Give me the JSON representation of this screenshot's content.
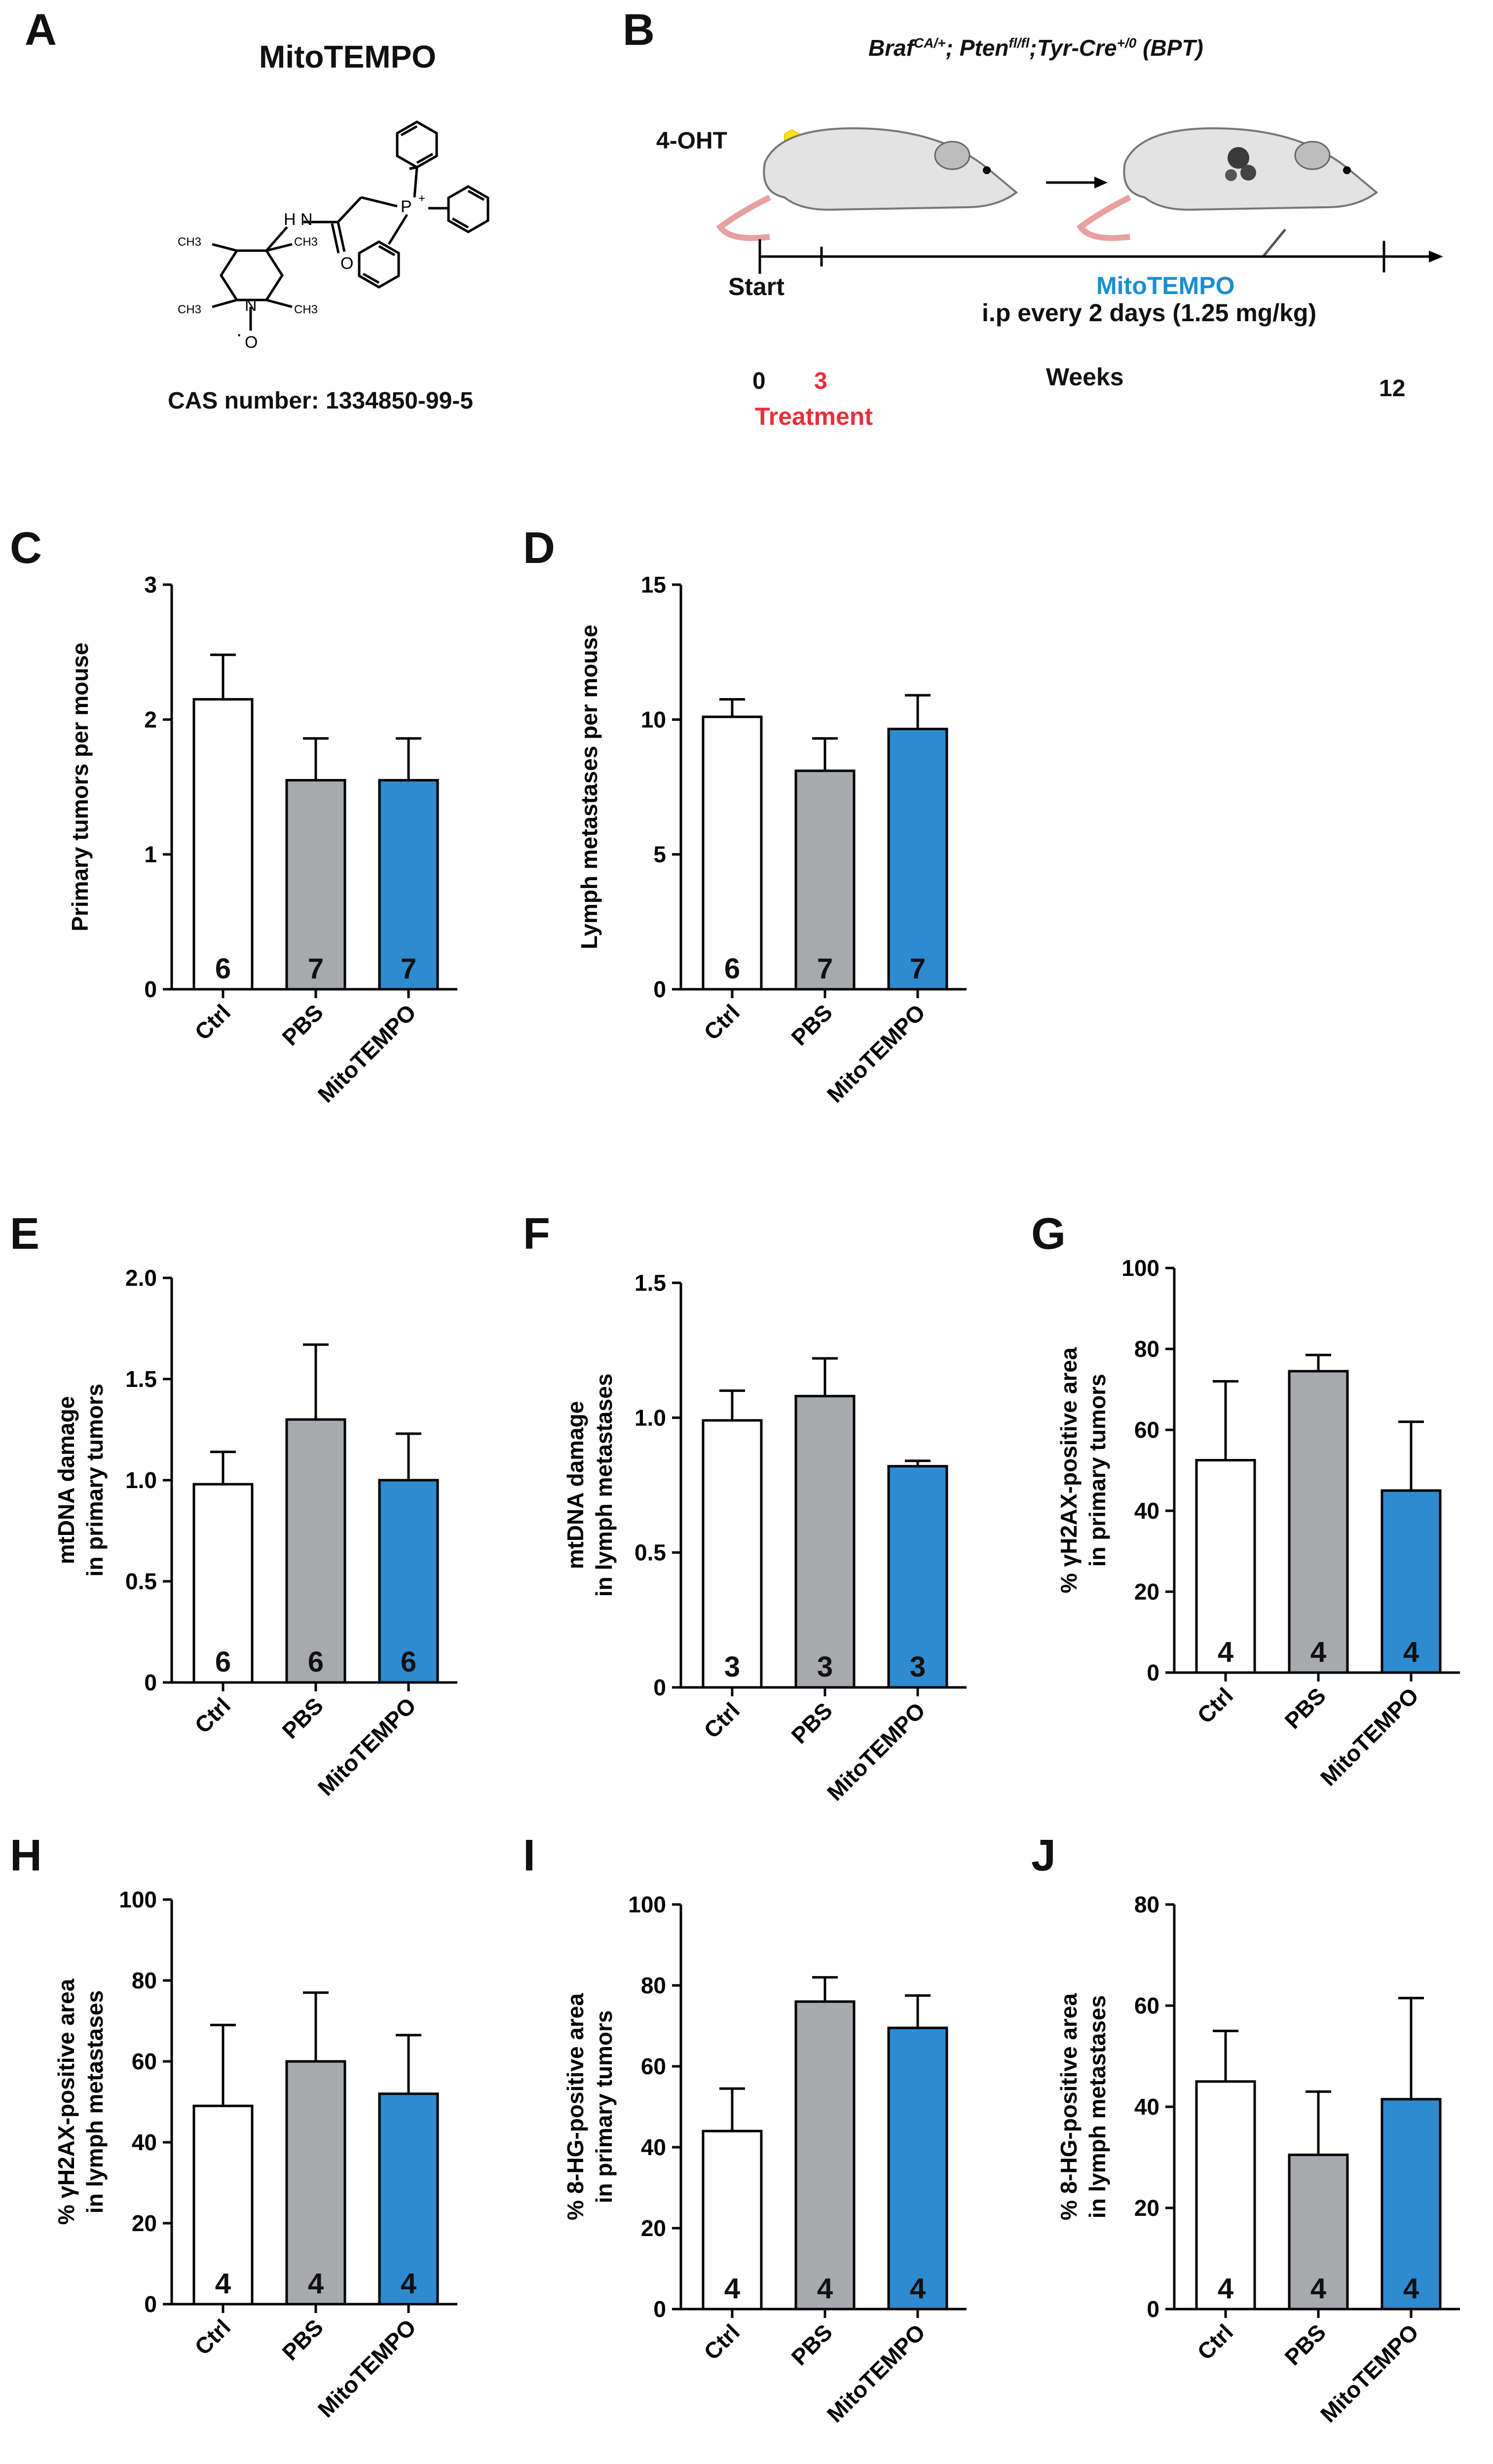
{
  "colors": {
    "ctrl": "#ffffff",
    "pbs": "#a7a9ac",
    "mito": "#2e8bd0",
    "axis": "#000000",
    "treatment": "#ee2d3a",
    "mitotempo_text": "#1b8ed1",
    "ohtd_dot": "#ffe600"
  },
  "panel_a": {
    "letter": "A",
    "title": "MitoTEMPO",
    "cas": "CAS number: 1334850-99-5",
    "atoms": {
      "n_amide": "H N",
      "o": "O",
      "p": "P",
      "plus": "+",
      "n_ring": "N",
      "o_radical": "O",
      "radical_dot": "·",
      "methyl": "CH3"
    }
  },
  "panel_b": {
    "letter": "B",
    "genotype_parts": [
      "Braf",
      "CA/+",
      "; Pten",
      "fl/fl",
      ";Tyr-Cre",
      "+/0",
      " (BPT)"
    ],
    "ohtd_label": "4-OHT",
    "start_label": "Start",
    "mitotempo_label": "MitoTEMPO",
    "dosing": "i.p every 2 days (1.25 mg/kg)",
    "tick_0": "0",
    "tick_3": "3",
    "tick_12": "12",
    "weeks_label": "Weeks",
    "treatment_label": "Treatment"
  },
  "chart_data": [
    {
      "id": "C",
      "type": "bar",
      "ylabel": "Primary tumors per mouse",
      "ylabel2": "",
      "categories": [
        "Ctrl",
        "PBS",
        "MitoTEMPO"
      ],
      "values": [
        2.15,
        1.55,
        1.55
      ],
      "errors": [
        0.33,
        0.31,
        0.31
      ],
      "n": [
        "6",
        "7",
        "7"
      ],
      "ylim": [
        0,
        3
      ],
      "yticks": [
        0,
        1,
        2,
        3
      ],
      "ytick_labels": [
        "0",
        "1",
        "2",
        "3"
      ]
    },
    {
      "id": "D",
      "type": "bar",
      "ylabel": "Lymph metastases per mouse",
      "ylabel2": "",
      "categories": [
        "Ctrl",
        "PBS",
        "MitoTEMPO"
      ],
      "values": [
        10.1,
        8.1,
        9.65
      ],
      "errors": [
        0.65,
        1.2,
        1.25
      ],
      "n": [
        "6",
        "7",
        "7"
      ],
      "ylim": [
        0,
        15
      ],
      "yticks": [
        0,
        5,
        10,
        15
      ],
      "ytick_labels": [
        "0",
        "5",
        "10",
        "15"
      ]
    },
    {
      "id": "E",
      "type": "bar",
      "ylabel": "mtDNA damage",
      "ylabel2": "in primary tumors",
      "categories": [
        "Ctrl",
        "PBS",
        "MitoTEMPO"
      ],
      "values": [
        0.98,
        1.3,
        1.0
      ],
      "errors": [
        0.16,
        0.37,
        0.23
      ],
      "n": [
        "6",
        "6",
        "6"
      ],
      "ylim": [
        0,
        2
      ],
      "yticks": [
        0,
        0.5,
        1,
        1.5,
        2
      ],
      "ytick_labels": [
        "0",
        "0.5",
        "1.0",
        "1.5",
        "2.0"
      ]
    },
    {
      "id": "F",
      "type": "bar",
      "ylabel": "mtDNA damage",
      "ylabel2": "in lymph metastases",
      "categories": [
        "Ctrl",
        "PBS",
        "MitoTEMPO"
      ],
      "values": [
        0.99,
        1.08,
        0.82
      ],
      "errors": [
        0.11,
        0.14,
        0.02
      ],
      "n": [
        "3",
        "3",
        "3"
      ],
      "ylim": [
        0,
        1.5
      ],
      "yticks": [
        0,
        0.5,
        1,
        1.5
      ],
      "ytick_labels": [
        "0",
        "0.5",
        "1.0",
        "1.5"
      ]
    },
    {
      "id": "G",
      "type": "bar",
      "ylabel": "% γH2AX-positive area",
      "ylabel2": "in primary tumors",
      "categories": [
        "Ctrl",
        "PBS",
        "MitoTEMPO"
      ],
      "values": [
        52.5,
        74.5,
        45
      ],
      "errors": [
        19.5,
        4,
        17
      ],
      "n": [
        "4",
        "4",
        "4"
      ],
      "ylim": [
        0,
        100
      ],
      "yticks": [
        0,
        20,
        40,
        60,
        80,
        100
      ],
      "ytick_labels": [
        "0",
        "20",
        "40",
        "60",
        "80",
        "100"
      ]
    },
    {
      "id": "H",
      "type": "bar",
      "ylabel": "% γH2AX-positive area",
      "ylabel2": "in lymph metastases",
      "categories": [
        "Ctrl",
        "PBS",
        "MitoTEMPO"
      ],
      "values": [
        49,
        60,
        52
      ],
      "errors": [
        20,
        17,
        14.5
      ],
      "n": [
        "4",
        "4",
        "4"
      ],
      "ylim": [
        0,
        100
      ],
      "yticks": [
        0,
        20,
        40,
        60,
        80,
        100
      ],
      "ytick_labels": [
        "0",
        "20",
        "40",
        "60",
        "80",
        "100"
      ]
    },
    {
      "id": "I",
      "type": "bar",
      "ylabel": "% 8-HG-positive area",
      "ylabel2": "in primary tumors",
      "categories": [
        "Ctrl",
        "PBS",
        "MitoTEMPO"
      ],
      "values": [
        44,
        76,
        69.5
      ],
      "errors": [
        10.5,
        6,
        8
      ],
      "n": [
        "4",
        "4",
        "4"
      ],
      "ylim": [
        0,
        100
      ],
      "yticks": [
        0,
        20,
        40,
        60,
        80,
        100
      ],
      "ytick_labels": [
        "0",
        "20",
        "40",
        "60",
        "80",
        "100"
      ]
    },
    {
      "id": "J",
      "type": "bar",
      "ylabel": "% 8-HG-positive area",
      "ylabel2": "in lymph metastases",
      "categories": [
        "Ctrl",
        "PBS",
        "MitoTEMPO"
      ],
      "values": [
        45,
        30.5,
        41.5
      ],
      "errors": [
        10,
        12.5,
        20
      ],
      "n": [
        "4",
        "4",
        "4"
      ],
      "ylim": [
        0,
        80
      ],
      "yticks": [
        0,
        20,
        40,
        60,
        80
      ],
      "ytick_labels": [
        "0",
        "20",
        "40",
        "60",
        "80"
      ]
    }
  ]
}
